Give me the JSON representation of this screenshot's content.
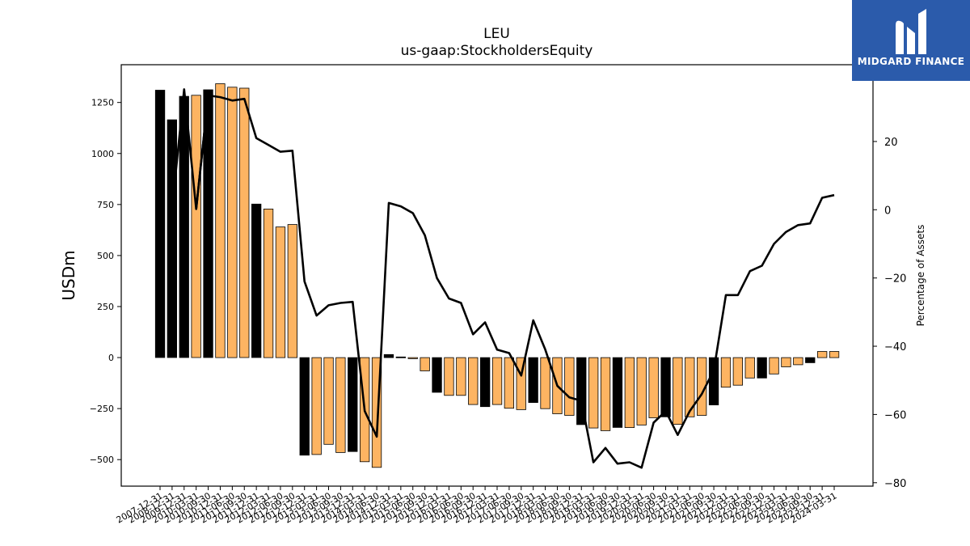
{
  "header": {
    "title": "LEU",
    "subtitle": "us-gaap:StockholdersEquity"
  },
  "logo": {
    "name": "MIDGARD FINANCE",
    "icon": "midgard-logo-icon",
    "background": "#2b5bab"
  },
  "colors": {
    "bar_black": "#000000",
    "bar_orange": "#fdb462",
    "line": "#000000"
  },
  "chart_data": {
    "type": "bar",
    "title": "LEU",
    "subtitle": "us-gaap:StockholdersEquity",
    "ylabel": "USDm",
    "y2label": "Percentage of Assets",
    "ylim": [
      -630,
      1435
    ],
    "y2lim": [
      -81,
      42.5
    ],
    "yticks": [
      -500,
      -250,
      0,
      250,
      500,
      750,
      1000,
      1250
    ],
    "y2ticks": [
      -80,
      -60,
      -40,
      -20,
      0,
      20
    ],
    "grid": false,
    "legend": "none",
    "categories": [
      "2007-12-31",
      "2008-12-31",
      "2009-12-31",
      "2010-03-31",
      "2010-09-30",
      "2010-12-31",
      "2011-06-30",
      "2011-09-30",
      "2011-12-31",
      "2012-03-31",
      "2012-06-30",
      "2012-09-30",
      "2012-12-31",
      "2013-03-31",
      "2013-06-30",
      "2013-09-30",
      "2013-12-31",
      "2014-03-31",
      "2014-06-30",
      "2014-12-31",
      "2015-03-31",
      "2015-06-30",
      "2015-09-30",
      "2015-12-31",
      "2016-03-31",
      "2016-06-30",
      "2016-09-30",
      "2016-12-31",
      "2017-03-31",
      "2017-06-30",
      "2017-09-30",
      "2017-12-31",
      "2018-03-31",
      "2018-06-30",
      "2018-09-30",
      "2018-12-31",
      "2019-03-31",
      "2019-06-30",
      "2019-09-30",
      "2019-12-31",
      "2020-03-31",
      "2020-06-30",
      "2020-09-30",
      "2020-12-31",
      "2021-03-31",
      "2021-06-30",
      "2021-09-30",
      "2021-12-31",
      "2022-03-31",
      "2022-06-30",
      "2022-09-30",
      "2022-12-31",
      "2023-03-31",
      "2023-06-30",
      "2023-09-30",
      "2023-12-31",
      "2024-03-31"
    ],
    "bar_colors": [
      "black",
      "black",
      "black",
      "orange",
      "black",
      "orange",
      "orange",
      "orange",
      "black",
      "orange",
      "orange",
      "orange",
      "black",
      "orange",
      "orange",
      "orange",
      "black",
      "orange",
      "orange",
      "black",
      "black",
      "orange",
      "orange",
      "black",
      "orange",
      "orange",
      "orange",
      "black",
      "orange",
      "orange",
      "orange",
      "black",
      "orange",
      "orange",
      "orange",
      "black",
      "orange",
      "orange",
      "black",
      "orange",
      "orange",
      "orange",
      "black",
      "orange",
      "orange",
      "orange",
      "black",
      "orange",
      "orange",
      "orange",
      "black",
      "orange",
      "orange",
      "orange",
      "black",
      "orange",
      "orange"
    ],
    "series": [
      {
        "axis": "left",
        "type": "bar",
        "values": [
          1310,
          1165,
          1280,
          1285,
          1312,
          1342,
          1325,
          1320,
          752,
          728,
          640,
          652,
          -478,
          -475,
          -425,
          -465,
          -460,
          -510,
          -538,
          15,
          3,
          -5,
          -65,
          -170,
          -185,
          -185,
          -230,
          -240,
          -230,
          -248,
          -255,
          -220,
          -250,
          -275,
          -283,
          -328,
          -345,
          -358,
          -342,
          -343,
          -330,
          -295,
          -290,
          -327,
          -290,
          -283,
          -232,
          -145,
          -135,
          -100,
          -100,
          -80,
          -45,
          -35,
          -25,
          30,
          30
        ]
      },
      {
        "axis": "right",
        "type": "line",
        "values": [
          null,
          0.2,
          null,
          0.2,
          33.5,
          33,
          32,
          32.5,
          21,
          19,
          17,
          17.3,
          -21,
          -31,
          -28,
          -27.3,
          -27,
          -59,
          -66.5,
          2,
          1,
          -1,
          -7.5,
          -20,
          -26,
          -27.3,
          -36.5,
          -33,
          -41,
          -42,
          -48.6,
          -32.4,
          -41,
          -51.6,
          -55,
          -56,
          -74,
          -69.8,
          -74.4,
          -74,
          -75.6,
          -62.4,
          -59,
          -66,
          -59,
          -54,
          -47,
          -25,
          -25,
          -18,
          -16.4,
          -10,
          -6.5,
          -4.5,
          -4,
          3.5,
          4.3
        ],
        "note_points": [
          [
            1,
            0.2
          ],
          [
            2,
            35.3
          ],
          [
            3,
            0.2
          ]
        ]
      }
    ]
  }
}
